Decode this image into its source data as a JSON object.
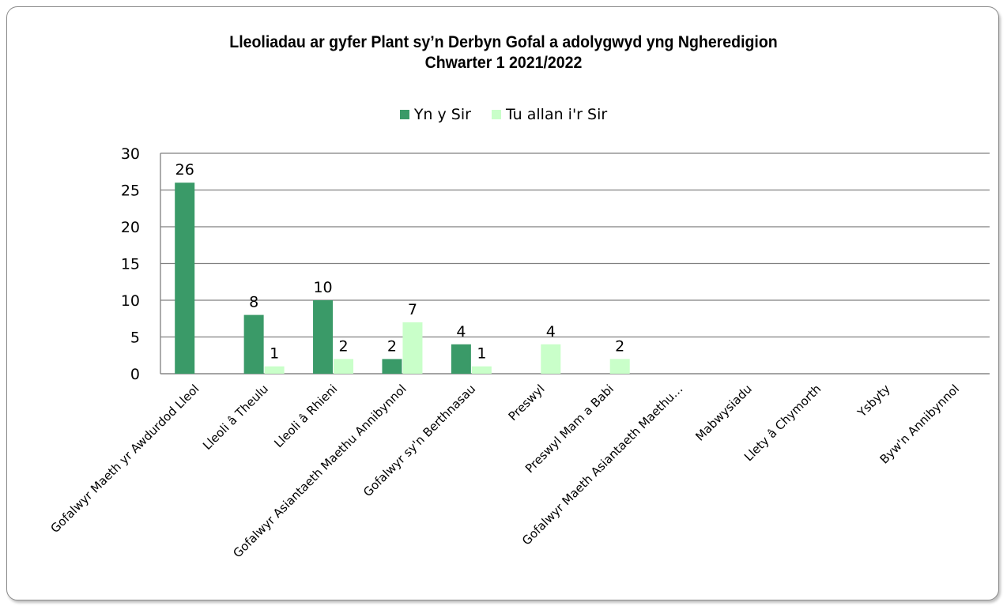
{
  "chart_data": {
    "type": "bar",
    "title": "Lleoliadau ar gyfer Plant sy’n Derbyn Gofal a adolygwyd yng Ngheredigion",
    "subtitle": "Chwarter 1  2021/2022",
    "categories": [
      "Gofalwyr Maeth yr Awdurdod Lleol",
      "Lleoli â Theulu",
      "Lleoli â Rhieni",
      "Gofalwyr Asiantaeth Maethu Annibynnol",
      "Gofalwyr sy'n Berthnasau",
      "Preswyl",
      "Preswyl Mam a Babi",
      "Gofalwyr Maeth Asiantaeth Maethu…",
      "Mabwysiadu",
      "Llety â Chymorth",
      "Ysbyty",
      "Byw'n Annibynnol"
    ],
    "series": [
      {
        "name": "Yn y Sir",
        "color": "#3a9a68",
        "values": [
          26,
          8,
          10,
          2,
          4,
          null,
          null,
          null,
          null,
          null,
          null,
          null
        ]
      },
      {
        "name": "Tu allan i'r Sir",
        "color": "#c9ffc9",
        "values": [
          null,
          1,
          2,
          7,
          1,
          4,
          2,
          null,
          null,
          null,
          null,
          null
        ]
      }
    ],
    "ylim": [
      0,
      30
    ],
    "yticks": [
      "0",
      "5",
      "10",
      "15",
      "20",
      "25",
      "30"
    ],
    "grid": true,
    "legend_position": "top"
  }
}
